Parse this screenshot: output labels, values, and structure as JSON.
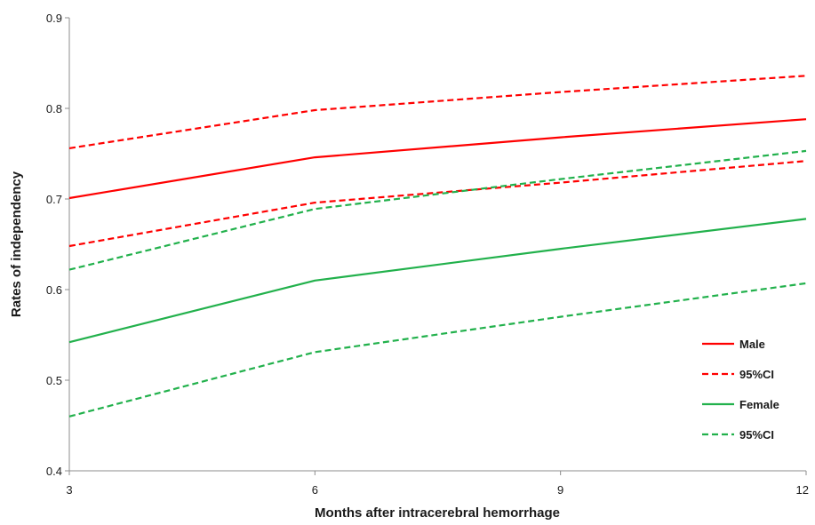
{
  "chart_data": {
    "type": "line",
    "title": "",
    "xlabel": "Months after intracerebral hemorrhage",
    "ylabel": "Rates of independency",
    "x": [
      3,
      6,
      9,
      12
    ],
    "xticks": [
      "3",
      "6",
      "9",
      "12"
    ],
    "yticks": [
      "0.4",
      "0.5",
      "0.6",
      "0.7",
      "0.8",
      "0.9"
    ],
    "xlim": [
      3,
      12
    ],
    "ylim": [
      0.4,
      0.9
    ],
    "grid": false,
    "legend_position": "bottom-right",
    "series": [
      {
        "name": "Male",
        "color": "#ff0000",
        "dash": "solid",
        "values": [
          0.701,
          0.746,
          0.768,
          0.788
        ]
      },
      {
        "name": "95%CI",
        "color": "#ff0000",
        "dash": "dashed",
        "values": [
          0.756,
          0.798,
          0.818,
          0.836
        ]
      },
      {
        "name": "",
        "color": "#ff0000",
        "dash": "dashed",
        "values": [
          0.648,
          0.696,
          0.718,
          0.742
        ],
        "legend": false
      },
      {
        "name": "Female",
        "color": "#22b14c",
        "dash": "solid",
        "values": [
          0.542,
          0.61,
          0.645,
          0.678
        ]
      },
      {
        "name": "95%CI",
        "color": "#22b14c",
        "dash": "dashed",
        "values": [
          0.622,
          0.689,
          0.722,
          0.753
        ]
      },
      {
        "name": "",
        "color": "#22b14c",
        "dash": "dashed",
        "values": [
          0.46,
          0.531,
          0.57,
          0.607
        ],
        "legend": false
      }
    ]
  }
}
